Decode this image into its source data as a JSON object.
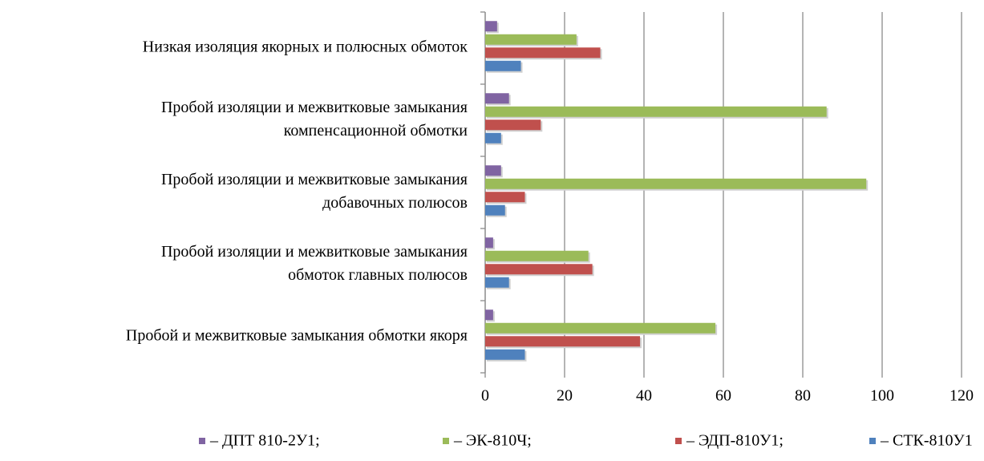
{
  "chart_data": {
    "type": "barh",
    "categories": [
      [
        "Низкая изоляция якорных и полюсных обмоток"
      ],
      [
        "Пробой изоляции и межвитковые замыкания",
        "компенсационной обмотки"
      ],
      [
        "Пробой изоляции и межвитковые замыкания",
        "добавочных полюсов"
      ],
      [
        "Пробой изоляции и межвитковые замыкания",
        "обмоток главных полюсов"
      ],
      [
        "Пробой и межвитковые замыкания обмотки якоря"
      ]
    ],
    "series": [
      {
        "name": "– ДПТ 810-2У1;",
        "color": "#8064a2",
        "values": [
          3,
          6,
          4,
          2,
          2
        ]
      },
      {
        "name": "– ЭК-810Ч;",
        "color": "#9bbb59",
        "values": [
          23,
          86,
          96,
          26,
          58
        ]
      },
      {
        "name": "– ЭДП-810У1;",
        "color": "#c0504d",
        "values": [
          29,
          14,
          10,
          27,
          39
        ]
      },
      {
        "name": "– СТК-810У1",
        "color": "#4f81bd",
        "values": [
          9,
          4,
          5,
          6,
          10
        ]
      }
    ],
    "xlim": [
      0,
      120
    ],
    "xticks": [
      0,
      20,
      40,
      60,
      80,
      100,
      120
    ],
    "grid": true,
    "legend": "bottom"
  }
}
